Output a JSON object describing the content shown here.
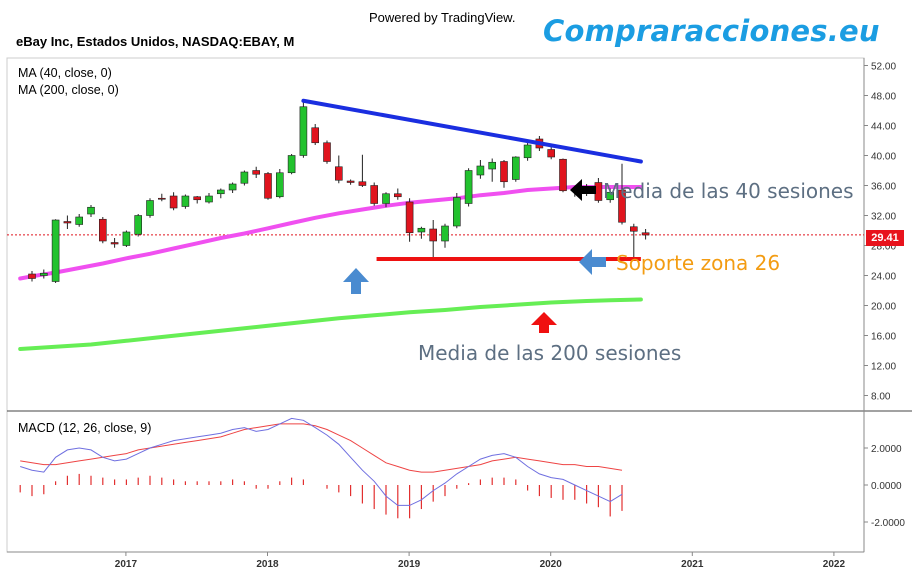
{
  "header": {
    "powered_by": "Powered by TradingView.",
    "brand": "Compraracciones.eu",
    "symbol": "eBay Inc, Estados Unidos, NASDAQ:EBAY, M"
  },
  "indicators": {
    "ma40_label": "MA (40, close, 0)",
    "ma200_label": "MA (200, close, 0)",
    "macd_label": "MACD (12, 26, close, 9)"
  },
  "annotations": {
    "ma40": "Media de las 40 sesiones",
    "support": "Soporte zona 26",
    "ma200": "Media de las 200 sesiones"
  },
  "last_price": "29.41",
  "colors": {
    "up": "#22c22e",
    "down": "#e0141e",
    "ma40": "#f050f0",
    "ma200": "#66ee55",
    "trendline": "#1a2ee0",
    "support": "#ee1111",
    "macd": "#6f6fe0",
    "signal": "#ee4444",
    "brand": "#1b9de2",
    "arrow_blue": "#4a8bd0"
  },
  "chart_data": [
    {
      "type": "candlestick",
      "title": "eBay Inc, Estados Unidos, NASDAQ:EBAY, M",
      "y_ticks": [
        "52.00",
        "48.00",
        "44.00",
        "40.00",
        "36.00",
        "32.00",
        "28.00",
        "24.00",
        "20.00",
        "16.00",
        "12.00",
        "8.00"
      ],
      "ylim": [
        6,
        53.5
      ],
      "x_ticks": [
        "2017",
        "2018",
        "2019",
        "2020",
        "2021",
        "2022"
      ],
      "x_tick_index": [
        8,
        20,
        32,
        44,
        56,
        68
      ],
      "candles": [
        [
          24.2,
          24.6,
          23.2,
          23.6
        ],
        [
          24.0,
          24.8,
          23.6,
          24.3
        ],
        [
          23.2,
          31.5,
          23.0,
          31.4
        ],
        [
          31.2,
          32.0,
          30.2,
          31.0
        ],
        [
          30.8,
          32.2,
          30.5,
          31.8
        ],
        [
          32.2,
          33.4,
          31.8,
          33.1
        ],
        [
          31.5,
          31.8,
          28.3,
          28.6
        ],
        [
          28.4,
          29.0,
          27.7,
          28.2
        ],
        [
          28.0,
          30.0,
          27.8,
          29.8
        ],
        [
          29.5,
          32.2,
          29.2,
          32.0
        ],
        [
          32.0,
          34.3,
          31.7,
          34.0
        ],
        [
          34.3,
          34.9,
          33.9,
          34.2
        ],
        [
          34.6,
          35.1,
          32.7,
          33.0
        ],
        [
          33.2,
          34.8,
          32.9,
          34.6
        ],
        [
          34.5,
          34.6,
          33.6,
          34.1
        ],
        [
          33.8,
          35.0,
          33.6,
          34.6
        ],
        [
          34.9,
          35.6,
          34.3,
          35.4
        ],
        [
          35.4,
          36.4,
          35.0,
          36.2
        ],
        [
          36.3,
          38.0,
          36.0,
          37.8
        ],
        [
          38.0,
          38.5,
          37.0,
          37.5
        ],
        [
          37.6,
          37.8,
          34.1,
          34.3
        ],
        [
          34.5,
          38.2,
          34.3,
          37.7
        ],
        [
          37.7,
          40.2,
          37.5,
          40.0
        ],
        [
          40.0,
          47.3,
          39.7,
          46.5
        ],
        [
          43.7,
          44.2,
          41.4,
          41.7
        ],
        [
          41.7,
          42.0,
          38.9,
          39.2
        ],
        [
          38.5,
          40.0,
          36.3,
          36.7
        ],
        [
          36.6,
          36.8,
          36.1,
          36.4
        ],
        [
          36.5,
          40.1,
          35.8,
          36.0
        ],
        [
          36.0,
          36.4,
          33.3,
          33.6
        ],
        [
          33.6,
          35.1,
          33.1,
          34.9
        ],
        [
          34.9,
          35.6,
          34.1,
          34.5
        ],
        [
          33.8,
          34.3,
          28.5,
          29.7
        ],
        [
          29.8,
          30.5,
          28.9,
          30.3
        ],
        [
          30.2,
          31.4,
          26.2,
          28.6
        ],
        [
          28.6,
          30.9,
          27.7,
          30.6
        ],
        [
          30.6,
          35.0,
          30.3,
          34.4
        ],
        [
          33.6,
          38.3,
          33.2,
          38.0
        ],
        [
          37.4,
          39.4,
          36.9,
          38.6
        ],
        [
          38.2,
          39.6,
          36.5,
          39.1
        ],
        [
          39.2,
          39.4,
          35.7,
          36.5
        ],
        [
          36.8,
          39.9,
          36.5,
          39.8
        ],
        [
          39.7,
          41.9,
          39.3,
          41.4
        ],
        [
          42.2,
          42.6,
          40.6,
          41.0
        ],
        [
          40.8,
          41.4,
          39.5,
          39.8
        ],
        [
          39.5,
          39.6,
          35.1,
          35.3
        ],
        [
          35.3,
          35.9,
          34.5,
          35.5
        ],
        [
          35.3,
          36.2,
          34.6,
          35.8
        ],
        [
          36.4,
          37.0,
          33.7,
          34.0
        ],
        [
          34.1,
          35.6,
          33.7,
          35.1
        ],
        [
          35.4,
          38.9,
          30.8,
          31.1
        ],
        [
          30.5,
          30.9,
          26.1,
          29.9
        ],
        [
          29.7,
          30.2,
          28.8,
          29.4
        ]
      ],
      "ma40": [
        [
          -1,
          23.6
        ],
        [
          0,
          23.9
        ],
        [
          2,
          24.4
        ],
        [
          4,
          25.0
        ],
        [
          6,
          25.6
        ],
        [
          8,
          26.3
        ],
        [
          10,
          26.9
        ],
        [
          12,
          27.6
        ],
        [
          14,
          28.3
        ],
        [
          16,
          29.0
        ],
        [
          18,
          29.6
        ],
        [
          20,
          30.3
        ],
        [
          22,
          31.0
        ],
        [
          24,
          31.7
        ],
        [
          26,
          32.3
        ],
        [
          28,
          32.8
        ],
        [
          30,
          33.3
        ],
        [
          32,
          33.7
        ],
        [
          34,
          34.0
        ],
        [
          36,
          34.3
        ],
        [
          38,
          34.7
        ],
        [
          40,
          35.0
        ],
        [
          42,
          35.4
        ],
        [
          44,
          35.6
        ],
        [
          46,
          35.8
        ],
        [
          48,
          35.8
        ],
        [
          50,
          35.8
        ],
        [
          51.6,
          35.8
        ]
      ],
      "ma200": [
        [
          -1,
          14.2
        ],
        [
          2,
          14.5
        ],
        [
          5,
          14.8
        ],
        [
          8,
          15.3
        ],
        [
          11,
          15.8
        ],
        [
          14,
          16.3
        ],
        [
          17,
          16.8
        ],
        [
          20,
          17.3
        ],
        [
          23,
          17.8
        ],
        [
          26,
          18.3
        ],
        [
          29,
          18.7
        ],
        [
          32,
          19.1
        ],
        [
          35,
          19.4
        ],
        [
          38,
          19.8
        ],
        [
          41,
          20.1
        ],
        [
          44,
          20.4
        ],
        [
          47,
          20.6
        ],
        [
          49,
          20.7
        ],
        [
          51.6,
          20.8
        ]
      ],
      "trendline": [
        [
          23,
          47.3
        ],
        [
          51.6,
          39.2
        ]
      ],
      "support": [
        [
          29.2,
          26.2
        ],
        [
          51.6,
          26.2
        ]
      ],
      "last_price": 29.41
    },
    {
      "type": "line",
      "title": "MACD (12, 26, close, 9)",
      "y_ticks": [
        "2.0000",
        "0.0000",
        "-2.0000"
      ],
      "ylim": [
        -3.3,
        3.5
      ],
      "macd": [
        [
          -1,
          1.0
        ],
        [
          0,
          0.8
        ],
        [
          1,
          0.7
        ],
        [
          2,
          1.5
        ],
        [
          3,
          1.9
        ],
        [
          4,
          2.0
        ],
        [
          5,
          1.9
        ],
        [
          6,
          1.5
        ],
        [
          7,
          1.3
        ],
        [
          8,
          1.4
        ],
        [
          9,
          1.7
        ],
        [
          10,
          2.0
        ],
        [
          11,
          2.2
        ],
        [
          12,
          2.4
        ],
        [
          13,
          2.5
        ],
        [
          14,
          2.6
        ],
        [
          15,
          2.7
        ],
        [
          16,
          2.8
        ],
        [
          17,
          3.0
        ],
        [
          18,
          3.1
        ],
        [
          19,
          2.9
        ],
        [
          20,
          3.0
        ],
        [
          21,
          3.3
        ],
        [
          22,
          3.6
        ],
        [
          23,
          3.5
        ],
        [
          24,
          3.1
        ],
        [
          25,
          2.7
        ],
        [
          26,
          2.2
        ],
        [
          27,
          1.5
        ],
        [
          28,
          0.8
        ],
        [
          29,
          0.2
        ],
        [
          30,
          -0.6
        ],
        [
          31,
          -1.1
        ],
        [
          32,
          -1.1
        ],
        [
          33,
          -0.8
        ],
        [
          34,
          -0.3
        ],
        [
          35,
          0.1
        ],
        [
          36,
          0.6
        ],
        [
          37,
          1.0
        ],
        [
          38,
          1.4
        ],
        [
          39,
          1.6
        ],
        [
          40,
          1.7
        ],
        [
          41,
          1.5
        ],
        [
          42,
          1.0
        ],
        [
          43,
          0.6
        ],
        [
          44,
          0.4
        ],
        [
          45,
          0.3
        ],
        [
          46,
          0.0
        ],
        [
          47,
          -0.3
        ],
        [
          48,
          -0.6
        ],
        [
          49,
          -0.9
        ],
        [
          50,
          -0.5
        ]
      ],
      "signal": [
        [
          -1,
          1.3
        ],
        [
          0,
          1.2
        ],
        [
          1,
          1.1
        ],
        [
          2,
          1.1
        ],
        [
          3,
          1.2
        ],
        [
          4,
          1.3
        ],
        [
          5,
          1.4
        ],
        [
          6,
          1.5
        ],
        [
          7,
          1.6
        ],
        [
          8,
          1.7
        ],
        [
          9,
          1.9
        ],
        [
          10,
          2.0
        ],
        [
          11,
          2.1
        ],
        [
          12,
          2.2
        ],
        [
          13,
          2.3
        ],
        [
          14,
          2.4
        ],
        [
          15,
          2.5
        ],
        [
          16,
          2.6
        ],
        [
          17,
          2.8
        ],
        [
          18,
          3.0
        ],
        [
          19,
          3.1
        ],
        [
          20,
          3.2
        ],
        [
          21,
          3.3
        ],
        [
          22,
          3.3
        ],
        [
          23,
          3.3
        ],
        [
          24,
          3.2
        ],
        [
          25,
          3.0
        ],
        [
          26,
          2.7
        ],
        [
          27,
          2.4
        ],
        [
          28,
          2.0
        ],
        [
          29,
          1.6
        ],
        [
          30,
          1.2
        ],
        [
          31,
          1.0
        ],
        [
          32,
          0.8
        ],
        [
          33,
          0.7
        ],
        [
          34,
          0.7
        ],
        [
          35,
          0.8
        ],
        [
          36,
          0.9
        ],
        [
          37,
          1.0
        ],
        [
          38,
          1.1
        ],
        [
          39,
          1.3
        ],
        [
          40,
          1.4
        ],
        [
          41,
          1.5
        ],
        [
          42,
          1.4
        ],
        [
          43,
          1.3
        ],
        [
          44,
          1.2
        ],
        [
          45,
          1.1
        ],
        [
          46,
          1.1
        ],
        [
          47,
          1.0
        ],
        [
          48,
          1.0
        ],
        [
          49,
          0.9
        ],
        [
          50,
          0.8
        ]
      ],
      "histogram": [
        [
          -1,
          -0.4
        ],
        [
          0,
          -0.6
        ],
        [
          1,
          -0.5
        ],
        [
          2,
          0.2
        ],
        [
          3,
          0.5
        ],
        [
          4,
          0.6
        ],
        [
          5,
          0.5
        ],
        [
          6,
          0.4
        ],
        [
          7,
          0.3
        ],
        [
          8,
          0.3
        ],
        [
          9,
          0.4
        ],
        [
          10,
          0.5
        ],
        [
          11,
          0.4
        ],
        [
          12,
          0.3
        ],
        [
          13,
          0.2
        ],
        [
          14,
          0.2
        ],
        [
          15,
          0.2
        ],
        [
          16,
          0.2
        ],
        [
          17,
          0.3
        ],
        [
          18,
          0.2
        ],
        [
          19,
          -0.2
        ],
        [
          20,
          -0.2
        ],
        [
          21,
          0.2
        ],
        [
          22,
          0.4
        ],
        [
          23,
          0.3
        ],
        [
          24,
          0.0
        ],
        [
          25,
          -0.2
        ],
        [
          26,
          -0.4
        ],
        [
          27,
          -0.6
        ],
        [
          28,
          -1.0
        ],
        [
          29,
          -1.3
        ],
        [
          30,
          -1.6
        ],
        [
          31,
          -1.8
        ],
        [
          32,
          -1.8
        ],
        [
          33,
          -1.3
        ],
        [
          34,
          -0.9
        ],
        [
          35,
          -0.6
        ],
        [
          36,
          -0.2
        ],
        [
          37,
          0.1
        ],
        [
          38,
          0.3
        ],
        [
          39,
          0.4
        ],
        [
          40,
          0.4
        ],
        [
          41,
          0.3
        ],
        [
          42,
          -0.3
        ],
        [
          43,
          -0.6
        ],
        [
          44,
          -0.7
        ],
        [
          45,
          -0.8
        ],
        [
          46,
          -0.8
        ],
        [
          47,
          -1.0
        ],
        [
          48,
          -1.2
        ],
        [
          49,
          -1.7
        ],
        [
          50,
          -1.4
        ]
      ]
    }
  ]
}
